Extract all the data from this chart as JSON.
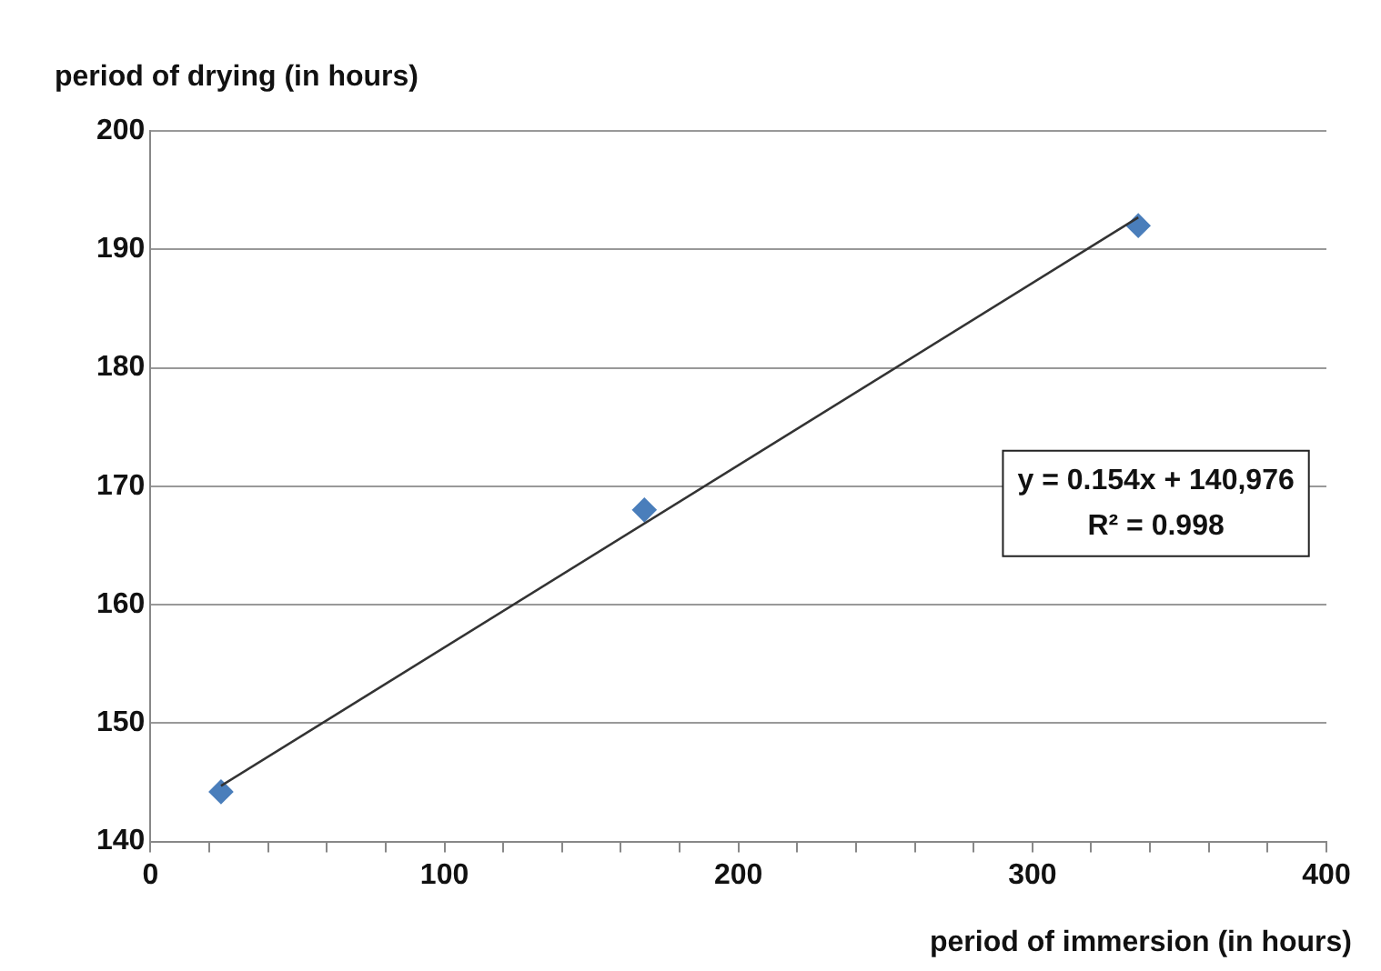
{
  "chart_data": {
    "type": "scatter",
    "xlabel": "period of immersion (in hours)",
    "ylabel": "period of drying (in hours)",
    "series": [
      {
        "type": "scatter",
        "color": "#4a7ebb",
        "x": [
          24,
          168,
          336
        ],
        "values": [
          144.2,
          168,
          192
        ]
      },
      {
        "type": "line",
        "color": "#333333",
        "marker": "none",
        "x": [
          24,
          336
        ],
        "values": [
          144.7,
          192.7
        ]
      }
    ],
    "annotations": [
      "y = 0.154x + 140,976",
      "R² = 0.998"
    ],
    "xlim": [
      0,
      400
    ],
    "xticks": [
      0,
      {
        "value": 20,
        "label": null
      },
      {
        "value": 40,
        "label": null
      },
      {
        "value": 60,
        "label": null
      },
      {
        "value": 80,
        "label": null
      },
      100,
      {
        "value": 120,
        "label": null
      },
      {
        "value": 140,
        "label": null
      },
      {
        "value": 160,
        "label": null
      },
      {
        "value": 180,
        "label": null
      },
      200,
      {
        "value": 220,
        "label": null
      },
      {
        "value": 240,
        "label": null
      },
      {
        "value": 260,
        "label": null
      },
      {
        "value": 280,
        "label": null
      },
      300,
      {
        "value": 320,
        "label": null
      },
      {
        "value": 340,
        "label": null
      },
      {
        "value": 360,
        "label": null
      },
      {
        "value": 380,
        "label": null
      },
      400
    ],
    "ylim": [
      140,
      200
    ],
    "yticks": [
      140,
      150,
      160,
      170,
      180,
      190,
      200
    ],
    "grid": "y",
    "legend": false,
    "marker": "diamond"
  }
}
